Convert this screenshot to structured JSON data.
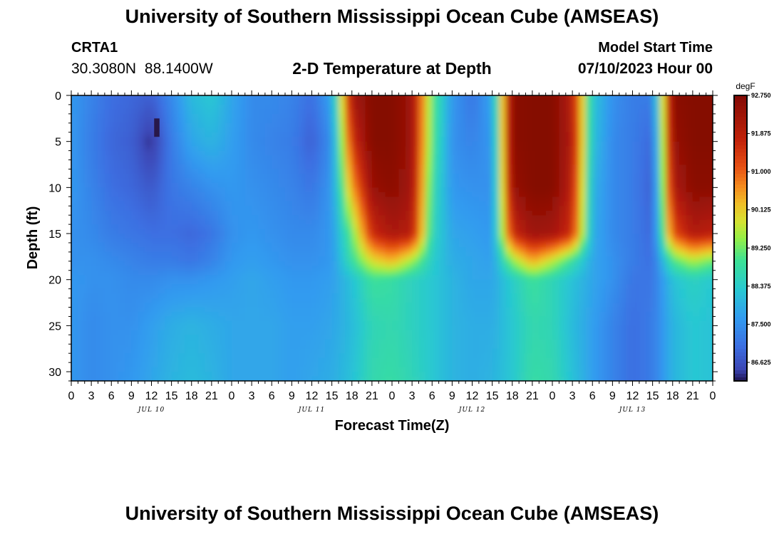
{
  "header": {
    "title": "University of Southern Mississippi Ocean Cube (AMSEAS)",
    "station": "CRTA1",
    "coords": "30.3080N  88.1400W",
    "subtitle": "2-D Temperature at Depth",
    "start_label": "Model Start Time",
    "start_value": "07/10/2023 Hour 00"
  },
  "footer": {
    "title": "University of Southern Mississippi Ocean Cube (AMSEAS)"
  },
  "chart_data": {
    "type": "heatmap",
    "title": "2-D Temperature at Depth",
    "xlabel": "Forecast Time(Z)",
    "ylabel": "Depth (ft)",
    "xlim_hours": [
      0,
      96
    ],
    "ylim": [
      0,
      31
    ],
    "x_ticks": [
      {
        "hour": 0,
        "label": "0"
      },
      {
        "hour": 3,
        "label": "3"
      },
      {
        "hour": 6,
        "label": "6"
      },
      {
        "hour": 9,
        "label": "9"
      },
      {
        "hour": 12,
        "label": "12"
      },
      {
        "hour": 15,
        "label": "15"
      },
      {
        "hour": 18,
        "label": "18"
      },
      {
        "hour": 21,
        "label": "21"
      },
      {
        "hour": 24,
        "label": "0"
      },
      {
        "hour": 27,
        "label": "3"
      },
      {
        "hour": 30,
        "label": "6"
      },
      {
        "hour": 33,
        "label": "9"
      },
      {
        "hour": 36,
        "label": "12"
      },
      {
        "hour": 39,
        "label": "15"
      },
      {
        "hour": 42,
        "label": "18"
      },
      {
        "hour": 45,
        "label": "21"
      },
      {
        "hour": 48,
        "label": "0"
      },
      {
        "hour": 51,
        "label": "3"
      },
      {
        "hour": 54,
        "label": "6"
      },
      {
        "hour": 57,
        "label": "9"
      },
      {
        "hour": 60,
        "label": "12"
      },
      {
        "hour": 63,
        "label": "15"
      },
      {
        "hour": 66,
        "label": "18"
      },
      {
        "hour": 69,
        "label": "21"
      },
      {
        "hour": 72,
        "label": "0"
      },
      {
        "hour": 75,
        "label": "3"
      },
      {
        "hour": 78,
        "label": "6"
      },
      {
        "hour": 81,
        "label": "9"
      },
      {
        "hour": 84,
        "label": "12"
      },
      {
        "hour": 87,
        "label": "15"
      },
      {
        "hour": 90,
        "label": "18"
      },
      {
        "hour": 93,
        "label": "21"
      },
      {
        "hour": 96,
        "label": "0"
      }
    ],
    "day_labels": [
      {
        "hour": 12,
        "label": "JUL 10"
      },
      {
        "hour": 36,
        "label": "JUL 11"
      },
      {
        "hour": 60,
        "label": "JUL 12"
      },
      {
        "hour": 84,
        "label": "JUL 13"
      }
    ],
    "y_ticks": [
      0,
      5,
      10,
      15,
      20,
      25,
      30
    ],
    "colorbar": {
      "unit": "degF",
      "min": 86.2,
      "max": 92.75,
      "labels": [
        "92.750",
        "91.875",
        "91.000",
        "90.125",
        "89.250",
        "88.375",
        "87.500",
        "86.625"
      ],
      "label_values": [
        92.75,
        91.875,
        91.0,
        90.125,
        89.25,
        88.375,
        87.5,
        86.625
      ]
    },
    "depths_ft": [
      0,
      5,
      10,
      15,
      18,
      20,
      25,
      31
    ],
    "columns": [
      {
        "hour": 0,
        "temps": [
          87.6,
          87.6,
          87.6,
          87.5,
          87.5,
          87.6,
          87.6,
          87.6
        ]
      },
      {
        "hour": 3,
        "temps": [
          87.3,
          87.2,
          87.3,
          87.4,
          87.5,
          87.5,
          87.4,
          87.4
        ]
      },
      {
        "hour": 6,
        "temps": [
          87.0,
          86.9,
          87.0,
          87.2,
          87.4,
          87.5,
          87.5,
          87.5
        ]
      },
      {
        "hour": 9,
        "temps": [
          86.9,
          86.8,
          86.9,
          87.1,
          87.3,
          87.4,
          87.5,
          87.6
        ]
      },
      {
        "hour": 12,
        "temps": [
          86.8,
          86.3,
          86.7,
          87.0,
          87.2,
          87.4,
          87.7,
          87.8
        ]
      },
      {
        "hour": 15,
        "temps": [
          87.4,
          87.2,
          87.1,
          87.0,
          87.2,
          87.5,
          87.9,
          88.0
        ]
      },
      {
        "hour": 18,
        "temps": [
          88.1,
          87.8,
          87.3,
          86.9,
          87.1,
          87.5,
          88.0,
          88.1
        ]
      },
      {
        "hour": 21,
        "temps": [
          88.3,
          88.0,
          87.5,
          87.1,
          87.3,
          87.6,
          87.9,
          88.0
        ]
      },
      {
        "hour": 24,
        "temps": [
          87.8,
          87.7,
          87.6,
          87.5,
          87.6,
          87.7,
          87.8,
          87.8
        ]
      },
      {
        "hour": 27,
        "temps": [
          87.4,
          87.4,
          87.5,
          87.6,
          87.7,
          87.8,
          87.8,
          87.8
        ]
      },
      {
        "hour": 30,
        "temps": [
          87.4,
          87.3,
          87.4,
          87.5,
          87.6,
          87.7,
          87.8,
          87.8
        ]
      },
      {
        "hour": 33,
        "temps": [
          87.3,
          87.2,
          87.3,
          87.4,
          87.5,
          87.6,
          87.7,
          87.7
        ]
      },
      {
        "hour": 36,
        "temps": [
          87.0,
          86.8,
          87.1,
          87.4,
          87.5,
          87.6,
          87.7,
          87.8
        ]
      },
      {
        "hour": 39,
        "temps": [
          87.8,
          87.5,
          87.6,
          87.6,
          87.6,
          87.7,
          87.8,
          87.9
        ]
      },
      {
        "hour": 42,
        "temps": [
          92.2,
          91.5,
          90.5,
          89.2,
          88.8,
          88.2,
          88.1,
          88.2
        ]
      },
      {
        "hour": 45,
        "temps": [
          92.7,
          92.7,
          92.4,
          91.6,
          89.9,
          88.9,
          88.6,
          88.7
        ]
      },
      {
        "hour": 48,
        "temps": [
          92.7,
          92.7,
          92.6,
          92.1,
          90.3,
          88.8,
          88.7,
          88.8
        ]
      },
      {
        "hour": 51,
        "temps": [
          92.3,
          92.3,
          92.2,
          91.9,
          89.5,
          88.5,
          88.5,
          88.6
        ]
      },
      {
        "hour": 54,
        "temps": [
          89.2,
          89.1,
          88.8,
          88.6,
          88.4,
          88.3,
          88.3,
          88.3
        ]
      },
      {
        "hour": 57,
        "temps": [
          87.6,
          87.5,
          87.6,
          87.8,
          87.9,
          88.0,
          88.0,
          88.0
        ]
      },
      {
        "hour": 60,
        "temps": [
          87.1,
          87.3,
          87.5,
          87.7,
          87.8,
          87.8,
          87.9,
          87.9
        ]
      },
      {
        "hour": 63,
        "temps": [
          87.8,
          87.6,
          87.5,
          87.6,
          87.7,
          87.8,
          87.9,
          88.0
        ]
      },
      {
        "hour": 66,
        "temps": [
          92.6,
          92.6,
          92.4,
          91.6,
          89.4,
          88.4,
          88.3,
          88.3
        ]
      },
      {
        "hour": 69,
        "temps": [
          92.7,
          92.7,
          92.7,
          92.3,
          90.4,
          88.9,
          88.7,
          88.8
        ]
      },
      {
        "hour": 72,
        "temps": [
          92.7,
          92.7,
          92.7,
          92.2,
          89.7,
          88.6,
          88.6,
          88.7
        ]
      },
      {
        "hour": 75,
        "temps": [
          91.9,
          92.0,
          91.8,
          91.5,
          88.8,
          88.2,
          88.1,
          88.2
        ]
      },
      {
        "hour": 78,
        "temps": [
          88.3,
          88.2,
          88.0,
          87.9,
          87.8,
          87.8,
          87.7,
          87.7
        ]
      },
      {
        "hour": 81,
        "temps": [
          87.5,
          87.4,
          87.4,
          87.4,
          87.5,
          87.5,
          87.3,
          87.3
        ]
      },
      {
        "hour": 84,
        "temps": [
          87.2,
          87.2,
          87.2,
          87.2,
          87.2,
          87.1,
          87.0,
          87.0
        ]
      },
      {
        "hour": 87,
        "temps": [
          87.2,
          86.9,
          86.8,
          86.9,
          87.0,
          87.1,
          87.2,
          87.2
        ]
      },
      {
        "hour": 90,
        "temps": [
          92.6,
          92.4,
          92.0,
          91.1,
          89.0,
          88.2,
          88.0,
          88.0
        ]
      },
      {
        "hour": 93,
        "temps": [
          92.7,
          92.7,
          92.6,
          92.0,
          89.6,
          88.5,
          88.3,
          88.3
        ]
      },
      {
        "hour": 96,
        "temps": [
          92.7,
          92.7,
          92.6,
          91.8,
          89.2,
          88.3,
          88.2,
          88.2
        ]
      }
    ],
    "anomaly": {
      "hour_from": 12.4,
      "hour_to": 13.2,
      "depth_from": 2.5,
      "depth_to": 4.5,
      "temp": 84.8
    }
  }
}
